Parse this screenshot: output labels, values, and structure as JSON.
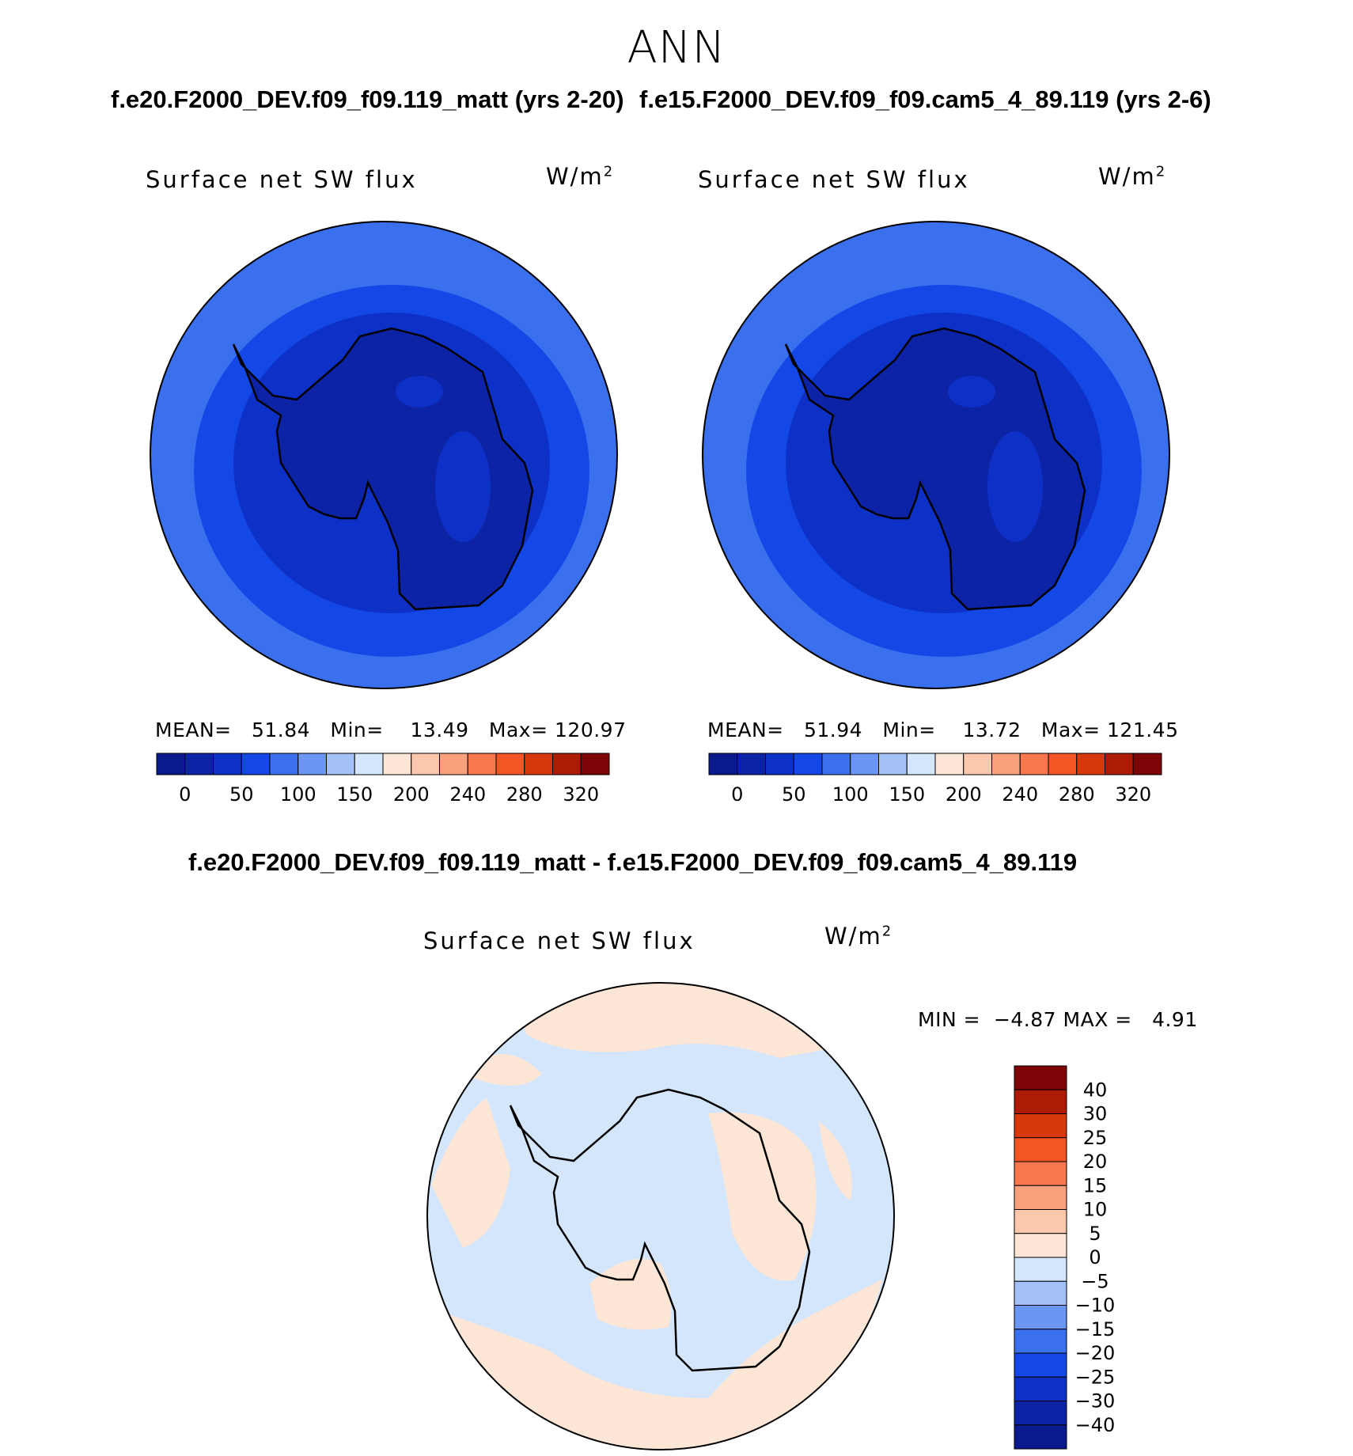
{
  "season": "ANN",
  "case1_title": "f.e20.F2000_DEV.f09_f09.119_matt (yrs 2-20)",
  "case2_title": "f.e15.F2000_DEV.f09_f09.cam5_4_89.119 (yrs 2-6)",
  "diff_title": "f.e20.F2000_DEV.f09_f09.119_matt - f.e15.F2000_DEV.f09_f09.cam5_4_89.119",
  "variable_label": "Surface net SW flux",
  "units_base": "W/m",
  "units_exp": "2",
  "panels": [
    {
      "id": "case1",
      "mean_label": "MEAN=",
      "mean": "51.84",
      "min_label": "Min=",
      "min": "13.49",
      "max_label": "Max=",
      "max": "120.97"
    },
    {
      "id": "case2",
      "mean_label": "MEAN=",
      "mean": "51.94",
      "min_label": "Min=",
      "min": "13.72",
      "max_label": "Max=",
      "max": "121.45"
    }
  ],
  "diff_stats": {
    "min_label": "MIN =",
    "min": "−4.87",
    "max_label": "MAX =",
    "max": "4.91"
  },
  "colorbar_main": {
    "colors": [
      "#0a1a8c",
      "#0c23a6",
      "#0d31c6",
      "#1448e6",
      "#3a6fee",
      "#6b96f3",
      "#a3c0f7",
      "#d3e6fb",
      "#fde6d6",
      "#fbc8ad",
      "#f9a07c",
      "#f9774f",
      "#f45524",
      "#d9380d",
      "#ad1b07",
      "#7d0407"
    ],
    "labels": [
      "0",
      "50",
      "100",
      "150",
      "200",
      "240",
      "280",
      "320"
    ]
  },
  "colorbar_diff": {
    "colors": [
      "#0a1a8c",
      "#0c23a6",
      "#0d31c6",
      "#1448e6",
      "#3a6fee",
      "#6b96f3",
      "#a3c0f7",
      "#d3e6fb",
      "#fde6d6",
      "#fbc8ad",
      "#f9a07c",
      "#f9774f",
      "#f45524",
      "#d9380d",
      "#ad1b07",
      "#7d0407"
    ],
    "labels": [
      "40",
      "30",
      "25",
      "20",
      "15",
      "10",
      "5",
      "0",
      "−5",
      "−10",
      "−15",
      "−20",
      "−25",
      "−30",
      "−40"
    ]
  }
}
